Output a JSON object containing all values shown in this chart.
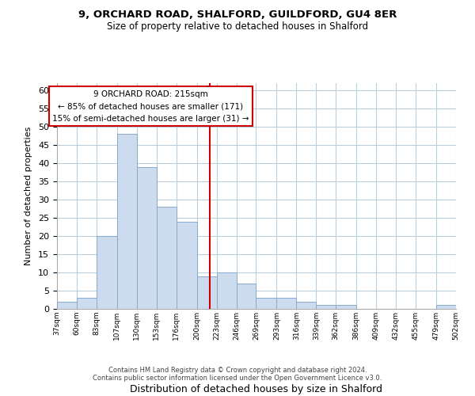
{
  "title1": "9, ORCHARD ROAD, SHALFORD, GUILDFORD, GU4 8ER",
  "title2": "Size of property relative to detached houses in Shalford",
  "xlabel": "Distribution of detached houses by size in Shalford",
  "ylabel": "Number of detached properties",
  "bin_edges": [
    37,
    60,
    83,
    107,
    130,
    153,
    176,
    200,
    223,
    246,
    269,
    293,
    316,
    339,
    362,
    386,
    409,
    432,
    455,
    479,
    502
  ],
  "bar_heights": [
    2,
    3,
    20,
    48,
    39,
    28,
    24,
    9,
    10,
    7,
    3,
    3,
    2,
    1,
    1,
    0,
    0,
    0,
    0,
    1
  ],
  "bar_color": "#ccdcee",
  "bar_edge_color": "#88aacb",
  "vline_x": 215,
  "vline_color": "#cc0000",
  "ylim": [
    0,
    62
  ],
  "yticks": [
    0,
    5,
    10,
    15,
    20,
    25,
    30,
    35,
    40,
    45,
    50,
    55,
    60
  ],
  "annotation_title": "9 ORCHARD ROAD: 215sqm",
  "annotation_line1": "← 85% of detached houses are smaller (171)",
  "annotation_line2": "15% of semi-detached houses are larger (31) →",
  "annotation_box_color": "#ffffff",
  "annotation_box_edge_color": "#cc0000",
  "footer1": "Contains HM Land Registry data © Crown copyright and database right 2024.",
  "footer2": "Contains public sector information licensed under the Open Government Licence v3.0.",
  "background_color": "#ffffff",
  "grid_color": "#b8cfe0"
}
